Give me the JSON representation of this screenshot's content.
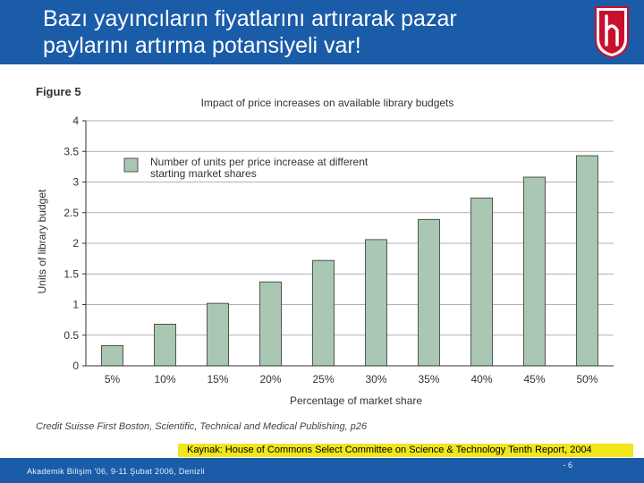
{
  "slide": {
    "title_line1": "Bazı yayıncıların fiyatlarını artırarak pazar",
    "title_line2": "paylarını artırma potansiyeli var!",
    "figure_label": "Figure 5",
    "source_citation": "Credit Suisse First Boston, Scientific, Technical and Medical Publishing, p26",
    "kaynak": "Kaynak: House of Commons Select Committee on Science & Technology Tenth Report, 2004",
    "footer_text": "Akademik Bilişim '06, 9-11 Şubat 2006, Denizli",
    "page_number": "- 6",
    "header_color": "#1a5ca8",
    "logo": "hacettepe-logo"
  },
  "chart_data": {
    "type": "bar",
    "title": "Impact of price increases on available library budgets",
    "xlabel": "Percentage of market share",
    "ylabel": "Units of library budget",
    "categories": [
      "5%",
      "10%",
      "15%",
      "20%",
      "25%",
      "30%",
      "35%",
      "40%",
      "45%",
      "50%"
    ],
    "series": [
      {
        "name": "Number of units per price increase at different starting market shares",
        "values": [
          0.33,
          0.68,
          1.02,
          1.37,
          1.72,
          2.06,
          2.39,
          2.74,
          3.08,
          3.43
        ],
        "color": "#a9c7b2"
      }
    ],
    "ylim": [
      0,
      4
    ],
    "yticks": [
      "0",
      "0.5",
      "1",
      "1.5",
      "2",
      "2.5",
      "3",
      "3.5",
      "4"
    ],
    "grid": true,
    "legend_position": "top-left"
  }
}
